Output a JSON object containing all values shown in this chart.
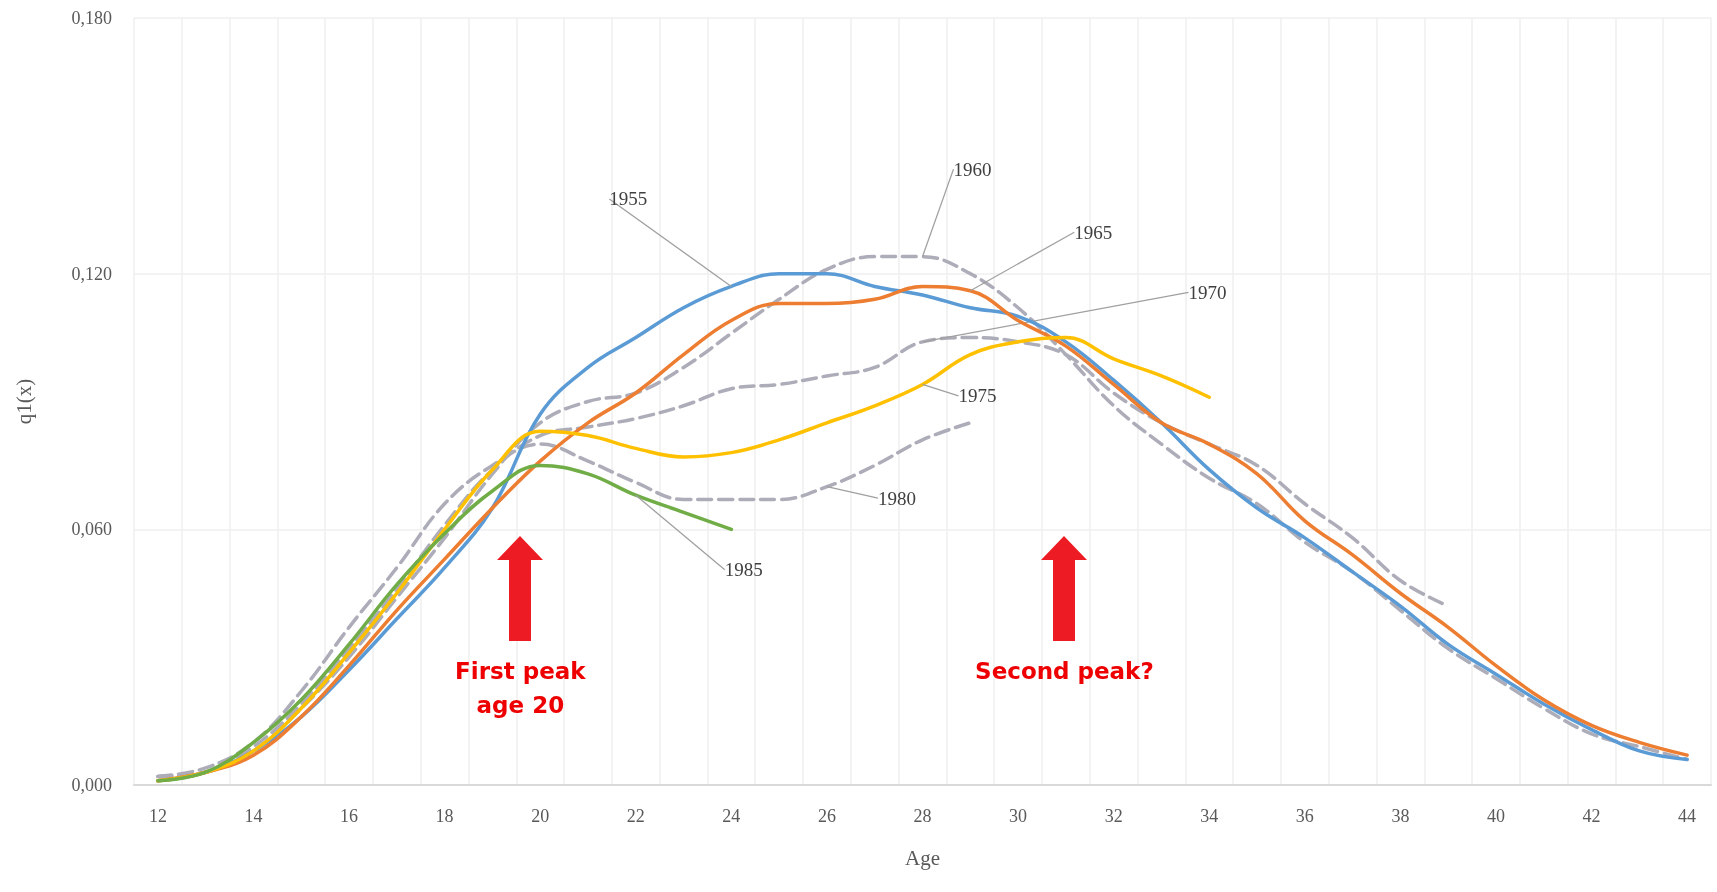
{
  "chart_data": {
    "type": "line",
    "xlabel": "Age",
    "ylabel": "q1(x)",
    "categories": [
      "12",
      null,
      "14",
      null,
      "16",
      null,
      "18",
      null,
      "20",
      null,
      "22",
      null,
      "24",
      null,
      "26",
      null,
      "28",
      null,
      "30",
      null,
      "32",
      null,
      "34",
      null,
      "36",
      null,
      "38",
      null,
      "40",
      null,
      "42",
      null,
      "44"
    ],
    "ylim": [
      0,
      0.18
    ],
    "yticks": [
      {
        "value": 0,
        "label": "0,000"
      },
      {
        "value": 0.06,
        "label": "0,060"
      },
      {
        "value": 0.12,
        "label": "0,120"
      },
      {
        "value": 0.18,
        "label": "0,180"
      }
    ],
    "grid": true,
    "marker": "none",
    "series": [
      {
        "name": "1955",
        "color": "#5b9bd5",
        "line_style": "solid",
        "values": [
          0.001,
          0.003,
          0.008,
          0.016,
          0.027,
          0.039,
          0.051,
          0.065,
          0.087,
          0.098,
          0.105,
          0.112,
          0.117,
          0.12,
          0.12,
          0.117,
          0.115,
          0.112,
          0.11,
          0.104,
          0.095,
          0.085,
          0.074,
          0.065,
          0.058,
          0.05,
          0.042,
          0.033,
          0.026,
          0.019,
          0.013,
          0.008,
          0.006
        ]
      },
      {
        "name": "1960",
        "color": "#adadb9",
        "line_style": "dashed",
        "values": [
          0.002,
          0.003,
          0.008,
          0.018,
          0.03,
          0.044,
          0.058,
          0.073,
          0.085,
          0.09,
          0.092,
          0.098,
          0.106,
          0.114,
          0.121,
          0.124,
          0.124,
          0.12,
          0.112,
          0.101,
          0.089,
          0.08,
          0.072,
          0.066,
          0.057,
          0.05,
          0.041,
          0.032,
          0.025,
          0.018,
          0.012,
          0.009,
          0.006
        ]
      },
      {
        "name": "1965",
        "color": "#ed7d31",
        "line_style": "solid",
        "values": [
          0.001,
          0.003,
          0.007,
          0.016,
          0.028,
          0.041,
          0.053,
          0.065,
          0.076,
          0.085,
          0.092,
          0.101,
          0.109,
          0.113,
          0.113,
          0.114,
          0.117,
          0.116,
          0.109,
          0.103,
          0.094,
          0.085,
          0.08,
          0.073,
          0.062,
          0.054,
          0.045,
          0.037,
          0.028,
          0.02,
          0.014,
          0.01,
          0.007
        ]
      },
      {
        "name": "1970",
        "color": "#adadb9",
        "line_style": "dashed",
        "values": [
          0.002,
          0.003,
          0.009,
          0.019,
          0.032,
          0.046,
          0.061,
          0.074,
          0.082,
          0.084,
          0.086,
          0.089,
          0.093,
          0.094,
          0.096,
          0.098,
          0.104,
          0.105,
          0.104,
          0.101,
          0.092,
          0.085,
          0.08,
          0.075,
          0.066,
          0.058,
          0.048,
          0.042,
          null,
          null,
          null,
          null,
          null
        ]
      },
      {
        "name": "1975",
        "color": "#ffc000",
        "line_style": "solid",
        "values": [
          0.001,
          0.003,
          0.008,
          0.018,
          0.031,
          0.045,
          0.06,
          0.074,
          0.083,
          0.082,
          0.079,
          0.077,
          0.078,
          0.081,
          0.085,
          0.089,
          0.094,
          0.101,
          0.104,
          0.105,
          0.1,
          0.096,
          0.091,
          null,
          null,
          null,
          null,
          null,
          null,
          null,
          null,
          null,
          null
        ]
      },
      {
        "name": "1980",
        "color": "#adadb9",
        "line_style": "dashed",
        "values": [
          0.002,
          0.004,
          0.01,
          0.022,
          0.037,
          0.051,
          0.066,
          0.075,
          0.08,
          0.076,
          0.071,
          0.067,
          0.067,
          0.067,
          0.07,
          0.075,
          0.081,
          0.085,
          null,
          null,
          null,
          null,
          null,
          null,
          null,
          null,
          null,
          null,
          null,
          null,
          null,
          null,
          null
        ]
      },
      {
        "name": "1985",
        "color": "#70ad47",
        "line_style": "solid",
        "values": [
          0.001,
          0.003,
          0.01,
          0.02,
          0.033,
          0.047,
          0.059,
          0.069,
          0.075,
          0.073,
          0.068,
          0.064,
          0.06,
          null,
          null,
          null,
          null,
          null,
          null,
          null,
          null,
          null,
          null,
          null,
          null,
          null,
          null,
          null,
          null,
          null,
          null,
          null,
          null
        ]
      }
    ],
    "annotations": [
      "First peak age 20",
      "Second peak?"
    ]
  }
}
